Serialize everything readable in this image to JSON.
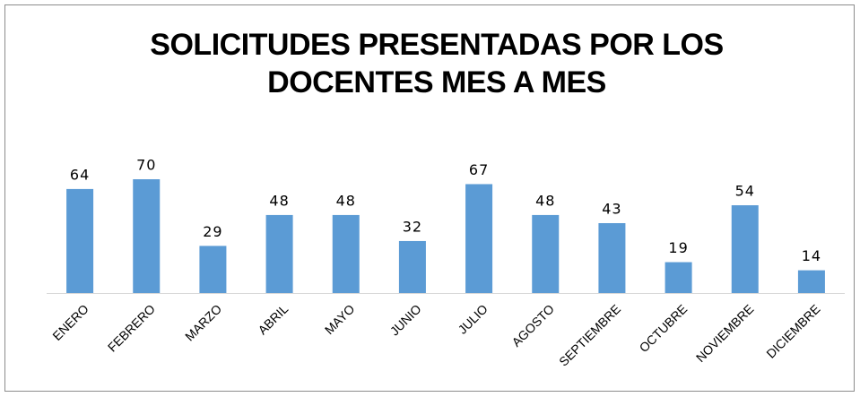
{
  "chart_data": {
    "type": "bar",
    "title": [
      "SOLICITUDES PRESENTADAS POR LOS",
      "DOCENTES MES A MES"
    ],
    "categories": [
      "ENERO",
      "FEBRERO",
      "MARZO",
      "ABRIL",
      "MAYO",
      "JUNIO",
      "JULIO",
      "AGOSTO",
      "SEPTIEMBRE",
      "OCTUBRE",
      "NOVIEMBRE",
      "DICIEMBRE"
    ],
    "values": [
      64,
      70,
      29,
      48,
      48,
      32,
      67,
      48,
      43,
      19,
      54,
      14
    ],
    "color": "#5b9bd5"
  }
}
